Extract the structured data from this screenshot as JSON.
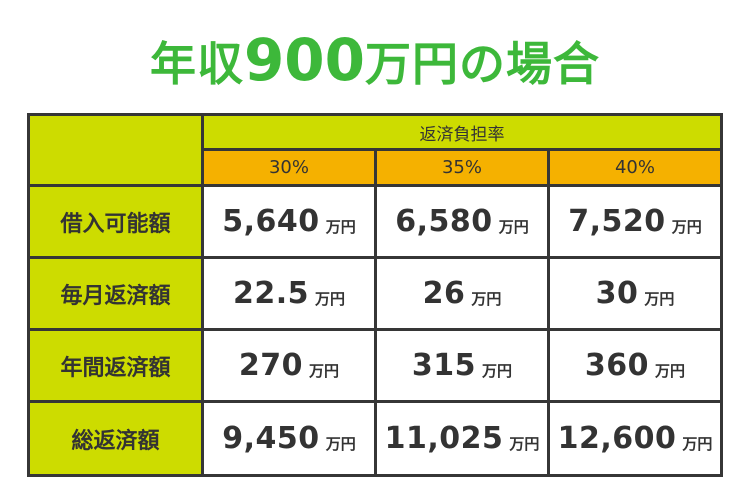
{
  "title": {
    "prefix": "年収",
    "amount": "900",
    "suffix": "万円の場合"
  },
  "table": {
    "group_header": "返済負担率",
    "rates": [
      "30%",
      "35%",
      "40%"
    ],
    "unit": "万円",
    "rows": [
      {
        "label": "借入可能額",
        "values": [
          "5,640",
          "6,580",
          "7,520"
        ]
      },
      {
        "label": "毎月返済額",
        "values": [
          "22.5",
          "26",
          "30"
        ]
      },
      {
        "label": "年間返済額",
        "values": [
          "270",
          "315",
          "360"
        ]
      },
      {
        "label": "総返済額",
        "values": [
          "9,450",
          "11,025",
          "12,600"
        ]
      }
    ]
  },
  "colors": {
    "title_green": "#3db83a",
    "header_lime": "#cddc00",
    "rate_orange": "#f5b100",
    "grid_dark": "#363636"
  }
}
